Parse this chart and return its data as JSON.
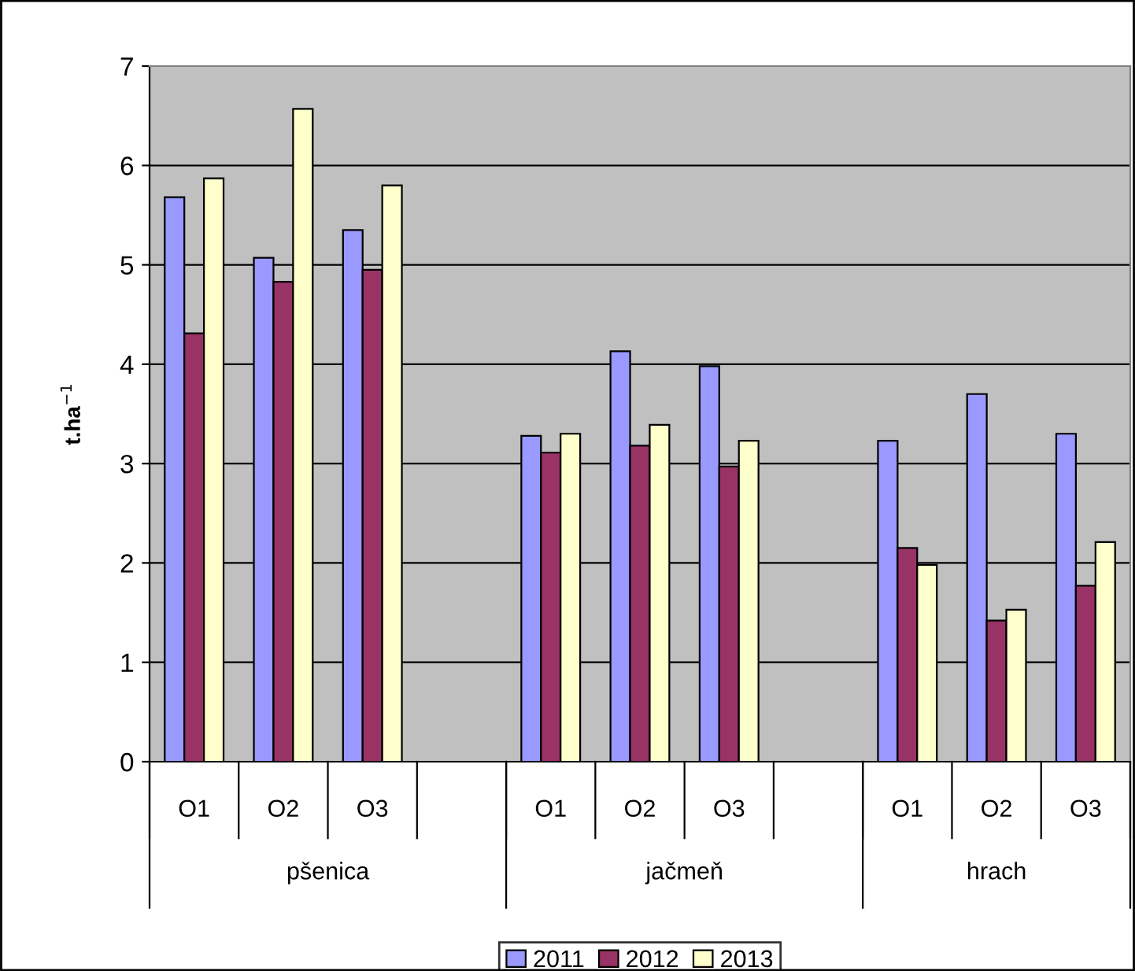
{
  "chart_data": {
    "type": "bar",
    "ylabel": "t.ha$^{−1}$",
    "categories": [
      "O1",
      "O2",
      "O3",
      null,
      "O1",
      "O2",
      "O3",
      null,
      "O1",
      "O2",
      "O3"
    ],
    "annotations": [
      "pšenica",
      "jačmeň",
      "hrach"
    ],
    "series": [
      {
        "name": "2011",
        "color": "#9999ff",
        "values": [
          5.68,
          5.07,
          5.35,
          null,
          3.28,
          4.13,
          3.98,
          null,
          3.23,
          3.7,
          3.3
        ]
      },
      {
        "name": "2012",
        "color": "#993366",
        "values": [
          4.31,
          4.83,
          4.95,
          null,
          3.11,
          3.18,
          2.97,
          null,
          2.15,
          1.42,
          1.77
        ]
      },
      {
        "name": "2013",
        "color": "#ffffcc",
        "values": [
          5.87,
          6.57,
          5.8,
          null,
          3.3,
          3.39,
          3.23,
          null,
          1.98,
          1.53,
          2.21
        ]
      }
    ],
    "ylim": [
      0,
      7
    ],
    "yticks": [
      0,
      1,
      2,
      3,
      4,
      5,
      6,
      7
    ],
    "grid": "y",
    "legend": "bottom"
  }
}
